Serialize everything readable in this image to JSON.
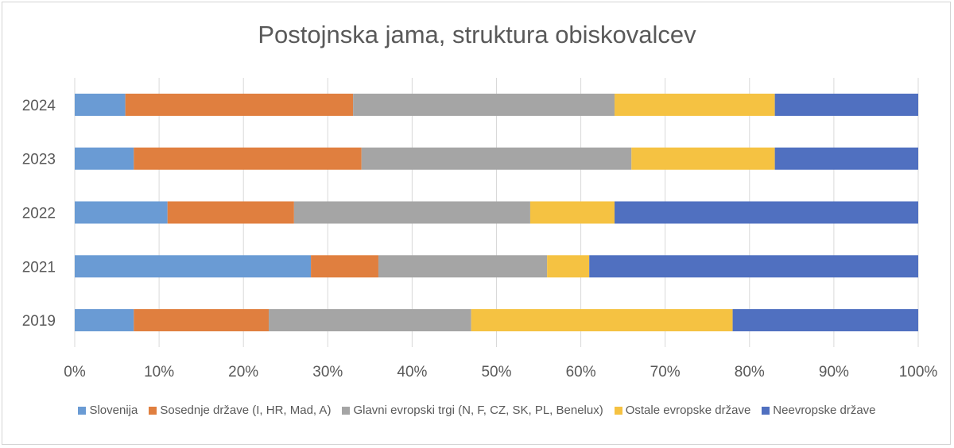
{
  "chart_data": {
    "type": "bar",
    "orientation": "horizontal",
    "stacked": "percent",
    "title": "Postojnska jama, struktura obiskovalcev",
    "categories": [
      "2024",
      "2023",
      "2022",
      "2021",
      "2019"
    ],
    "series": [
      {
        "name": "Slovenija",
        "color": "#6a9bd4",
        "values": [
          6,
          7,
          11,
          28,
          7
        ]
      },
      {
        "name": "Sosednje države (I, HR, Mad, A)",
        "color": "#e07f3f",
        "values": [
          27,
          27,
          15,
          8,
          16
        ]
      },
      {
        "name": "Glavni evropski trgi (N, F, CZ, SK, PL, Benelux)",
        "color": "#a5a5a5",
        "values": [
          31,
          32,
          28,
          20,
          24
        ]
      },
      {
        "name": "Ostale evropske države",
        "color": "#f5c242",
        "values": [
          19,
          17,
          10,
          5,
          31
        ]
      },
      {
        "name": "Neevropske države",
        "color": "#5070c0",
        "values": [
          17,
          17,
          36,
          39,
          22
        ]
      }
    ],
    "xlim": [
      0,
      100
    ],
    "x_ticks": [
      "0%",
      "10%",
      "20%",
      "30%",
      "40%",
      "50%",
      "60%",
      "70%",
      "80%",
      "90%",
      "100%"
    ],
    "grid": true,
    "legend_position": "bottom"
  }
}
